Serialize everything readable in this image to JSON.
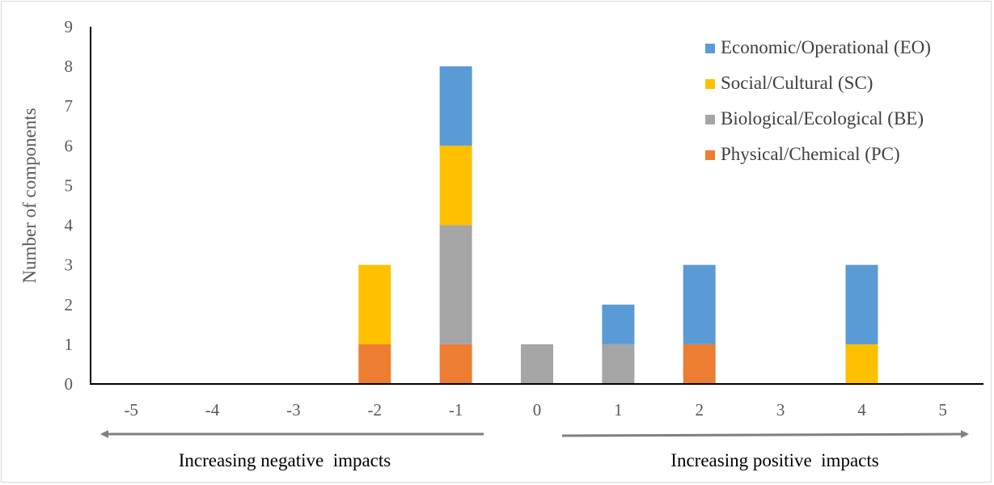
{
  "chart_data": {
    "type": "bar",
    "stacked": true,
    "categories": [
      "-5",
      "-4",
      "-3",
      "-2",
      "-1",
      "0",
      "1",
      "2",
      "3",
      "4",
      "5"
    ],
    "series": [
      {
        "name": "Physical/Chemical (PC)",
        "color": "#ED7D31",
        "values": [
          0,
          0,
          0,
          1,
          1,
          0,
          0,
          1,
          0,
          0,
          0
        ]
      },
      {
        "name": "Biological/Ecological (BE)",
        "color": "#A5A5A5",
        "values": [
          0,
          0,
          0,
          0,
          3,
          1,
          1,
          0,
          0,
          0,
          0
        ]
      },
      {
        "name": "Social/Cultural (SC)",
        "color": "#FFC000",
        "values": [
          0,
          0,
          0,
          2,
          2,
          0,
          0,
          0,
          0,
          1,
          0
        ]
      },
      {
        "name": "Economic/Operational (EO)",
        "color": "#5B9BD5",
        "values": [
          0,
          0,
          0,
          0,
          2,
          0,
          1,
          2,
          0,
          2,
          0
        ]
      }
    ],
    "legend_order": [
      "Economic/Operational (EO)",
      "Social/Cultural (SC)",
      "Biological/Ecological (BE)",
      "Physical/Chemical (PC)"
    ],
    "ylabel": "Number of components",
    "xlabel": "",
    "ylim": [
      0,
      9
    ],
    "yticks": [
      "0",
      "1",
      "2",
      "3",
      "4",
      "5",
      "6",
      "7",
      "8",
      "9"
    ],
    "grid": false,
    "legend_position": "top-right",
    "annotations": {
      "negative_arrow_label": "Increasing negative  impacts",
      "positive_arrow_label": "Increasing positive  impacts"
    }
  }
}
